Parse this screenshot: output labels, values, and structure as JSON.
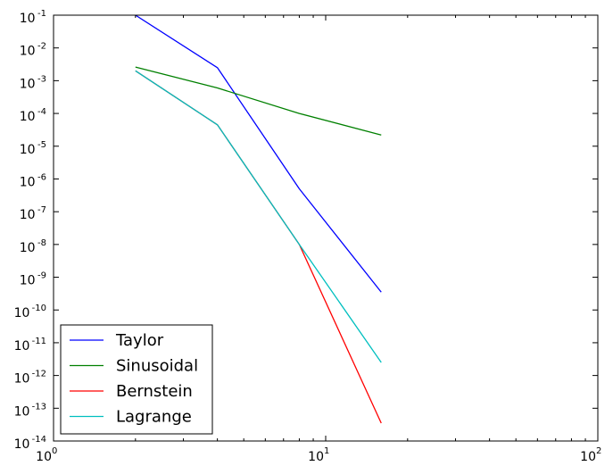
{
  "chart_data": {
    "type": "line",
    "xscale": "log",
    "yscale": "log",
    "xlim": [
      1,
      100
    ],
    "ylim": [
      1e-14,
      0.1
    ],
    "x_ticks": [
      {
        "value": 1,
        "base": "10",
        "exp": "0"
      },
      {
        "value": 10,
        "base": "10",
        "exp": "1"
      },
      {
        "value": 100,
        "base": "10",
        "exp": "2"
      }
    ],
    "y_ticks": [
      {
        "value": 0.1,
        "base": "10",
        "exp": "-1"
      },
      {
        "value": 0.01,
        "base": "10",
        "exp": "-2"
      },
      {
        "value": 0.001,
        "base": "10",
        "exp": "-3"
      },
      {
        "value": 0.0001,
        "base": "10",
        "exp": "-4"
      },
      {
        "value": 1e-05,
        "base": "10",
        "exp": "-5"
      },
      {
        "value": 1e-06,
        "base": "10",
        "exp": "-6"
      },
      {
        "value": 1e-07,
        "base": "10",
        "exp": "-7"
      },
      {
        "value": 1e-08,
        "base": "10",
        "exp": "-8"
      },
      {
        "value": 1e-09,
        "base": "10",
        "exp": "-9"
      },
      {
        "value": 1e-10,
        "base": "10",
        "exp": "-10"
      },
      {
        "value": 1e-11,
        "base": "10",
        "exp": "-11"
      },
      {
        "value": 1e-12,
        "base": "10",
        "exp": "-12"
      },
      {
        "value": 1e-13,
        "base": "10",
        "exp": "-13"
      },
      {
        "value": 1e-14,
        "base": "10",
        "exp": "-14"
      }
    ],
    "legend_position": "bottom-left",
    "grid": false,
    "x": [
      2,
      4,
      8,
      16
    ],
    "series": [
      {
        "name": "Taylor",
        "color": "#0000ff",
        "values": [
          0.1,
          0.0025,
          5e-07,
          3.5e-10
        ]
      },
      {
        "name": "Sinusoidal",
        "color": "#008000",
        "values": [
          0.0026,
          0.0006,
          0.0001,
          2.2e-05
        ]
      },
      {
        "name": "Bernstein",
        "color": "#ff0000",
        "values": [
          0.002,
          4.5e-05,
          1e-08,
          3.5e-14
        ]
      },
      {
        "name": "Lagrange",
        "color": "#00bfbf",
        "values": [
          0.002,
          4.5e-05,
          1e-08,
          2.5e-12
        ]
      }
    ]
  }
}
